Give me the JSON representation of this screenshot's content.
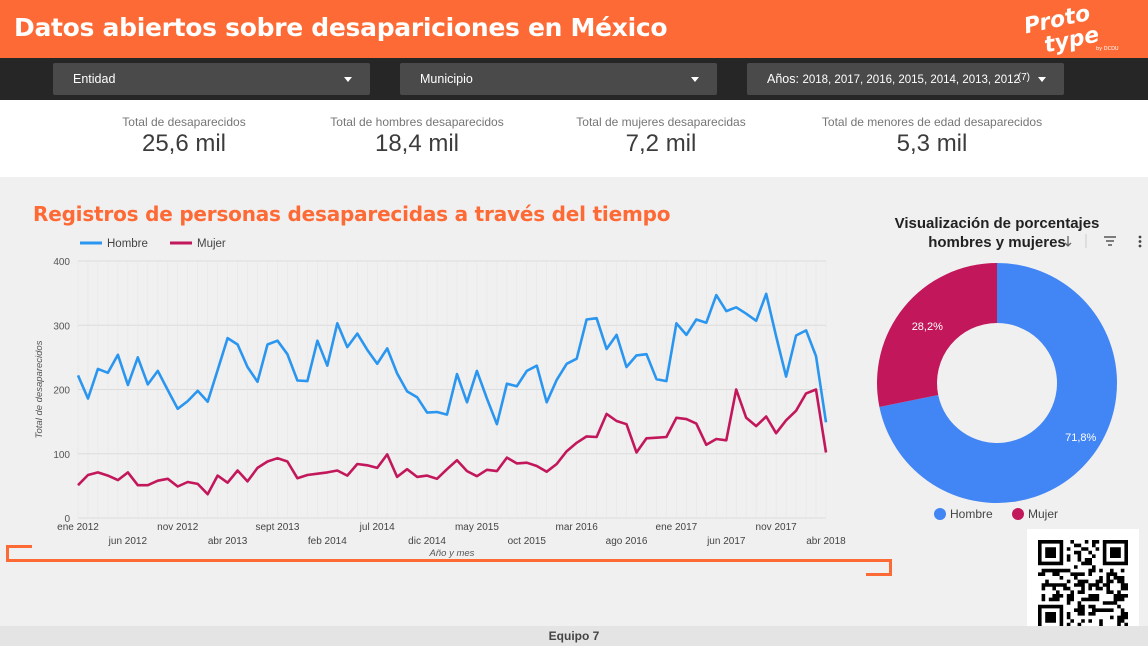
{
  "header": {
    "title": "Datos abiertos sobre desapariciones en México",
    "logo_top": "Proto",
    "logo_bottom": "type",
    "logo_small": "by DCDU"
  },
  "filters": {
    "entidad": "Entidad",
    "municipio": "Municipio",
    "anios_label": "Años:",
    "anios_value": "2018, 2017, 2016, 2015, 2014, 2013, 2012",
    "anios_count": "(7)"
  },
  "kpis": [
    {
      "label": "Total de desaparecidos",
      "value": "25,6 mil"
    },
    {
      "label": "Total de hombres desaparecidos",
      "value": "18,4 mil"
    },
    {
      "label": "Total de mujeres desaparecidas",
      "value": "7,2 mil"
    },
    {
      "label": "Total de menores de edad desaparecidos",
      "value": "5,3 mil"
    }
  ],
  "line_chart": {
    "title": "Registros de personas desaparecidas a través del tiempo"
  },
  "donut_chart": {
    "title_line1": "Visualización de porcentajes",
    "title_line2": "hombres y mujeres"
  },
  "footer": {
    "text": "Equipo 7"
  },
  "colors": {
    "accent": "#fe6a35",
    "hombre_line": "#2b96ef",
    "mujer_line": "#c2185b",
    "hombre_pie": "#4285f4",
    "mujer_pie": "#c2185b"
  },
  "chart_data": [
    {
      "type": "line",
      "title": "Registros de personas desaparecidas a través del tiempo",
      "xlabel": "Año y mes",
      "ylabel": "Total de desaparecidos",
      "ylim": [
        0,
        400
      ],
      "yticks": [
        0,
        100,
        200,
        300,
        400
      ],
      "xticks_top": [
        "ene 2012",
        "nov 2012",
        "sept 2013",
        "jul 2014",
        "may 2015",
        "mar 2016",
        "ene 2017",
        "nov 2017"
      ],
      "xticks_bottom": [
        "jun 2012",
        "abr 2013",
        "feb 2014",
        "dic 2014",
        "oct 2015",
        "ago 2016",
        "jun 2017",
        "abr 2018"
      ],
      "legend": "top-left",
      "grid": true,
      "x_start": "2012-01",
      "x_end": "2018-04",
      "series": [
        {
          "name": "Hombre",
          "values": [
            222,
            186,
            232,
            226,
            254,
            207,
            250,
            208,
            229,
            199,
            170,
            182,
            198,
            181,
            230,
            280,
            270,
            235,
            212,
            270,
            276,
            255,
            214,
            213,
            276,
            237,
            303,
            266,
            287,
            262,
            240,
            264,
            225,
            197,
            188,
            164,
            165,
            161,
            224,
            180,
            229,
            186,
            146,
            209,
            205,
            229,
            237,
            180,
            215,
            240,
            248,
            309,
            311,
            263,
            285,
            235,
            253,
            255,
            216,
            213,
            303,
            285,
            309,
            304,
            347,
            322,
            328,
            318,
            307,
            349,
            283,
            220,
            284,
            292,
            252,
            149
          ]
        },
        {
          "name": "Mujer",
          "values": [
            51,
            67,
            71,
            66,
            59,
            71,
            51,
            51,
            58,
            61,
            49,
            56,
            53,
            37,
            66,
            55,
            74,
            57,
            78,
            88,
            93,
            88,
            62,
            67,
            69,
            71,
            74,
            66,
            84,
            82,
            78,
            99,
            64,
            76,
            64,
            66,
            61,
            76,
            90,
            73,
            65,
            75,
            73,
            94,
            85,
            86,
            81,
            72,
            84,
            104,
            117,
            127,
            126,
            162,
            151,
            146,
            102,
            124,
            125,
            126,
            156,
            154,
            147,
            114,
            123,
            121,
            200,
            156,
            143,
            158,
            132,
            152,
            167,
            194,
            200,
            102
          ]
        }
      ]
    },
    {
      "type": "pie",
      "title": "Visualización de porcentajes hombres y mujeres",
      "categories": [
        "Hombre",
        "Mujer"
      ],
      "values": [
        71.8,
        28.2
      ],
      "labels": [
        "71,8%",
        "28,2%"
      ],
      "legend": "bottom"
    }
  ]
}
